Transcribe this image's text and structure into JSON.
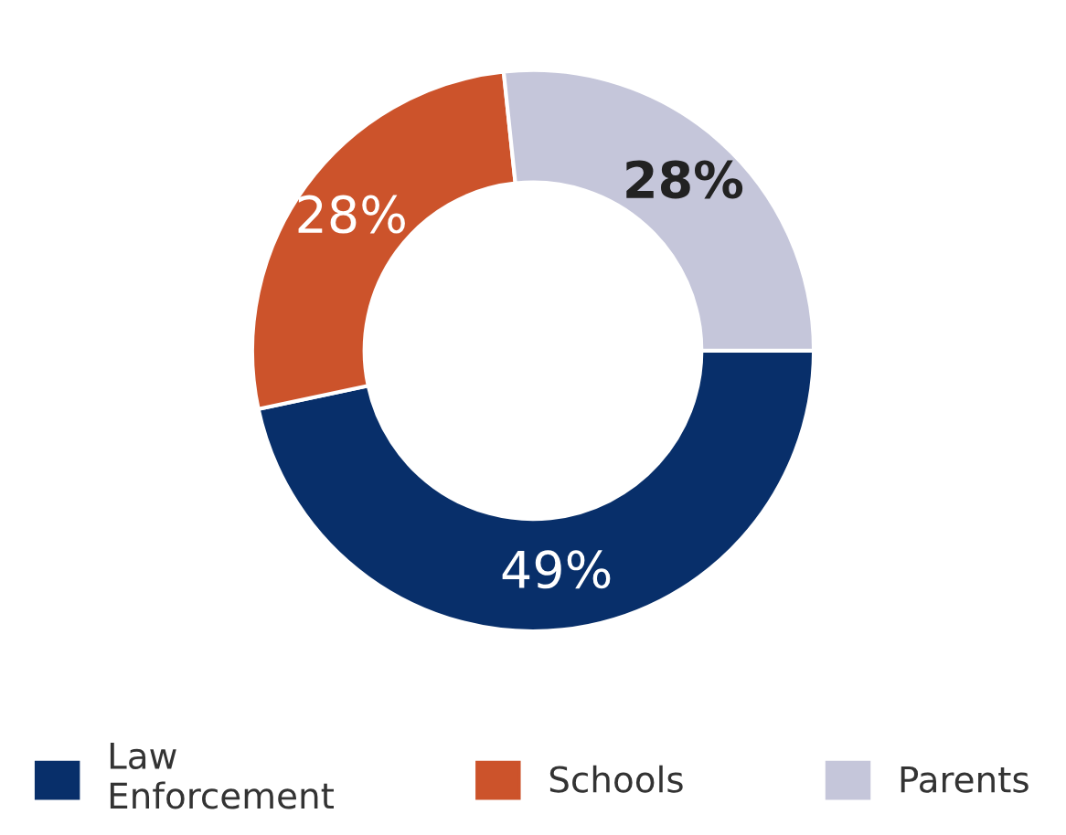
{
  "chart_data": {
    "type": "donut",
    "categories": [
      "Law Enforcement",
      "Schools",
      "Parents"
    ],
    "values": [
      49,
      28,
      28
    ],
    "colors": [
      "#082f6a",
      "#cc532b",
      "#c5c6da"
    ],
    "value_labels": [
      "49%",
      "28%",
      "28%"
    ],
    "legend": "bottom"
  }
}
